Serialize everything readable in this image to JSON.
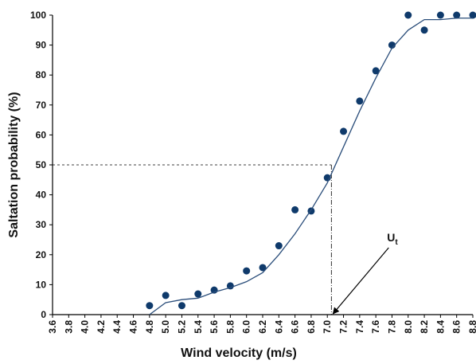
{
  "chart_data": {
    "type": "scatter",
    "xlabel": "Wind velocity (m/s)",
    "ylabel": "Saltation probability (%)",
    "xlim": [
      3.6,
      8.8
    ],
    "ylim": [
      0,
      100
    ],
    "xticks": [
      3.6,
      3.8,
      {
        "value": 4,
        "label": "4.0"
      },
      4.2,
      4.4,
      4.6,
      4.8,
      {
        "value": 5,
        "label": "5.0"
      },
      5.2,
      5.4,
      5.6,
      5.8,
      {
        "value": 6,
        "label": "6.0"
      },
      6.2,
      6.4,
      6.6,
      6.8,
      {
        "value": 7,
        "label": "7.0"
      },
      7.2,
      7.4,
      7.6,
      7.8,
      {
        "value": 8,
        "label": "8.0"
      },
      8.2,
      8.4,
      8.6,
      8.8
    ],
    "yticks": [
      0,
      10,
      20,
      30,
      40,
      50,
      60,
      70,
      80,
      90,
      100
    ],
    "series": [
      {
        "type": "scatter",
        "color": "#0f3a6b",
        "x": [
          4.8,
          5.0,
          5.2,
          5.4,
          5.6,
          5.8,
          6.0,
          6.2,
          6.4,
          6.6,
          6.8,
          7.0,
          7.2,
          7.4,
          7.6,
          7.8,
          8.0,
          8.2,
          8.4,
          8.6,
          8.8
        ],
        "values": [
          3,
          6.4,
          3,
          6.9,
          8.2,
          9.6,
          14.6,
          15.7,
          23,
          35,
          34.6,
          45.7,
          61.2,
          71.3,
          81.4,
          90,
          100,
          95,
          100,
          100,
          100
        ]
      },
      {
        "type": "line",
        "color": "#2a4d7a",
        "x": [
          4.8,
          5.0,
          5.2,
          5.4,
          5.6,
          5.8,
          6.0,
          6.2,
          6.4,
          6.6,
          6.8,
          7.0,
          7.2,
          7.4,
          7.6,
          7.8,
          8.0,
          8.2,
          8.4,
          8.6,
          8.8
        ],
        "values": [
          0,
          4,
          5,
          5.5,
          7.5,
          9,
          11,
          14,
          20,
          27,
          35,
          44,
          56,
          68,
          79,
          89,
          95,
          98.5,
          98.5,
          99,
          99
        ]
      }
    ],
    "reference": {
      "x": 7.05,
      "y": 50
    },
    "annotation": {
      "text": "U",
      "subscript": "t",
      "x": 7.05,
      "y": 0
    }
  }
}
